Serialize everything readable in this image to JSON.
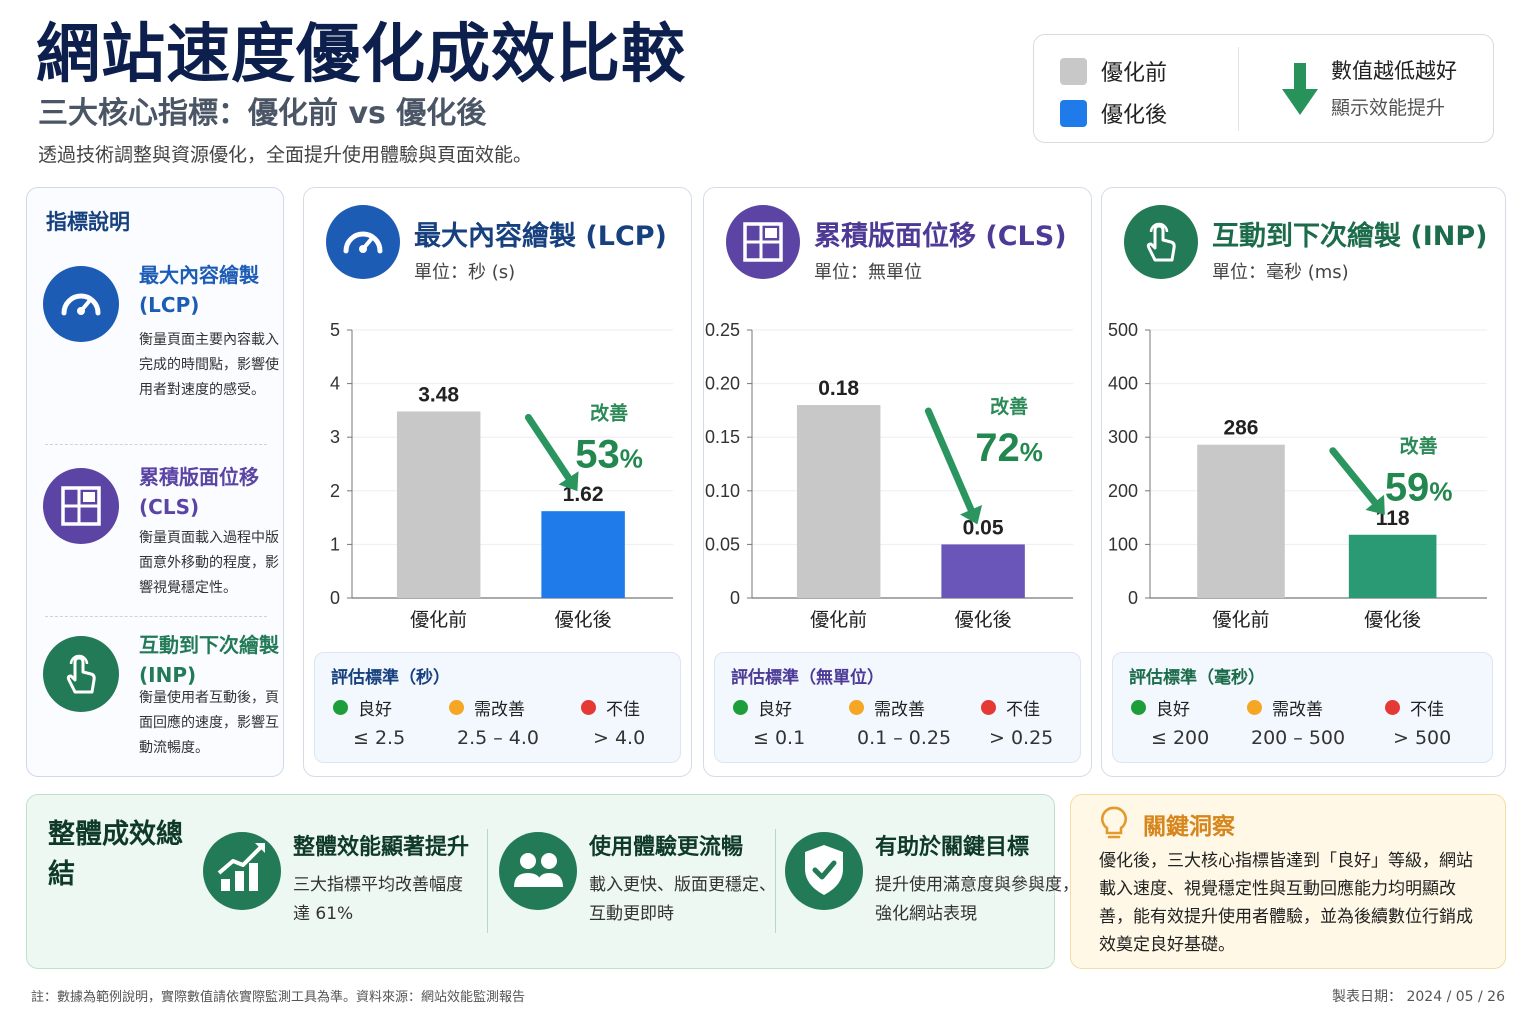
{
  "header": {
    "title": "網站速度優化成效比較",
    "subtitle": "三大核心指標：優化前 vs 優化後",
    "description": "透過技術調整與資源優化，全面提升使用體驗與頁面效能。"
  },
  "legend": {
    "before_label": "優化前",
    "after_label": "優化後",
    "before_color": "#c8c8c8",
    "after_color": "#1f7bea",
    "lower_better": "數值越低越好",
    "lower_better_sub": "顯示效能提升",
    "arrow_color": "#27935a"
  },
  "sidebar": {
    "title": "指標說明",
    "items": [
      {
        "name": "最大內容繪製 (LCP)",
        "text": "衡量頁面主要內容載入完成的時間點，影響使用者對速度的感受。",
        "color": "#1d5cb5",
        "icon": "gauge-icon"
      },
      {
        "name": "累積版面位移 (CLS)",
        "text": "衡量頁面載入過程中版面意外移動的程度，影響視覺穩定性。",
        "color": "#5b44a3",
        "icon": "layout-shift-icon"
      },
      {
        "name": "互動到下次繪製 (INP)",
        "text": "衡量使用者互動後，頁面回應的速度，影響互動流暢度。",
        "color": "#237a57",
        "icon": "tap-hand-icon"
      }
    ]
  },
  "chart_data": [
    {
      "type": "bar",
      "title": "最大內容繪製 (LCP)",
      "unit": "單位：秒 (s)",
      "categories": [
        "優化前",
        "優化後"
      ],
      "values": [
        3.48,
        1.62
      ],
      "value_labels": [
        "3.48",
        "1.62"
      ],
      "ylim": [
        0,
        5
      ],
      "yticks": [
        "0",
        "1",
        "2",
        "3",
        "4",
        "5"
      ],
      "tick_values": [
        0,
        1,
        2,
        3,
        4,
        5
      ],
      "colors": [
        "#c8c8c8",
        "#1f7bea"
      ],
      "accent": "#17407e",
      "improvement_label": "改善",
      "improvement_value": "53",
      "improvement_unit": "%",
      "criteria": {
        "title": "評估標準（秒）",
        "good_label": "良好",
        "good_range": "≤ 2.5",
        "warn_label": "需改善",
        "warn_range": "2.5 – 4.0",
        "bad_label": "不佳",
        "bad_range": "> 4.0"
      }
    },
    {
      "type": "bar",
      "title": "累積版面位移 (CLS)",
      "unit": "單位：無單位",
      "categories": [
        "優化前",
        "優化後"
      ],
      "values": [
        0.18,
        0.05
      ],
      "value_labels": [
        "0.18",
        "0.05"
      ],
      "ylim": [
        0,
        0.25
      ],
      "yticks": [
        "0",
        "0.05",
        "0.10",
        "0.15",
        "0.20",
        "0.25"
      ],
      "tick_values": [
        0,
        0.05,
        0.1,
        0.15,
        0.2,
        0.25
      ],
      "colors": [
        "#c8c8c8",
        "#6a56b8"
      ],
      "accent": "#4d3a96",
      "improvement_label": "改善",
      "improvement_value": "72",
      "improvement_unit": "%",
      "criteria": {
        "title": "評估標準（無單位）",
        "good_label": "良好",
        "good_range": "≤ 0.1",
        "warn_label": "需改善",
        "warn_range": "0.1 – 0.25",
        "bad_label": "不佳",
        "bad_range": "> 0.25"
      }
    },
    {
      "type": "bar",
      "title": "互動到下次繪製 (INP)",
      "unit": "單位：毫秒 (ms)",
      "categories": [
        "優化前",
        "優化後"
      ],
      "values": [
        286,
        118
      ],
      "value_labels": [
        "286",
        "118"
      ],
      "ylim": [
        0,
        500
      ],
      "yticks": [
        "0",
        "100",
        "200",
        "300",
        "400",
        "500"
      ],
      "tick_values": [
        0,
        100,
        200,
        300,
        400,
        500
      ],
      "colors": [
        "#c8c8c8",
        "#2a9a74"
      ],
      "accent": "#1c6b4a",
      "improvement_label": "改善",
      "improvement_value": "59",
      "improvement_unit": "%",
      "criteria": {
        "title": "評估標準（毫秒）",
        "good_label": "良好",
        "good_range": "≤ 200",
        "warn_label": "需改善",
        "warn_range": "200 – 500",
        "bad_label": "不佳",
        "bad_range": "> 500"
      }
    }
  ],
  "status_colors": {
    "good": "#1e9e3a",
    "warn": "#f5a623",
    "bad": "#e53935"
  },
  "summary": {
    "title": "整體成效總結",
    "items": [
      {
        "head": "整體效能顯著提升",
        "line1": "三大指標平均改善幅度",
        "line2": "達 61%",
        "icon": "growth-chart-icon"
      },
      {
        "head": "使用體驗更流暢",
        "line1": "載入更快、版面更穩定、",
        "line2": "互動更即時",
        "icon": "users-icon"
      },
      {
        "head": "有助於關鍵目標",
        "line1": "提升使用滿意度與參與度，",
        "line2": "強化網站表現",
        "icon": "shield-check-icon"
      }
    ]
  },
  "insight": {
    "title": "關鍵洞察",
    "text": "優化後，三大核心指標皆達到「良好」等級，網站載入速度、視覺穩定性與互動回應能力均明顯改善，能有效提升使用者體驗，並為後續數位行銷成效奠定良好基礎。"
  },
  "footer": {
    "note": "註：數據為範例說明，實際數值請依實際監測工具為準。資料來源：網站效能監測報告",
    "date": "製表日期： 2024 / 05 / 26"
  }
}
